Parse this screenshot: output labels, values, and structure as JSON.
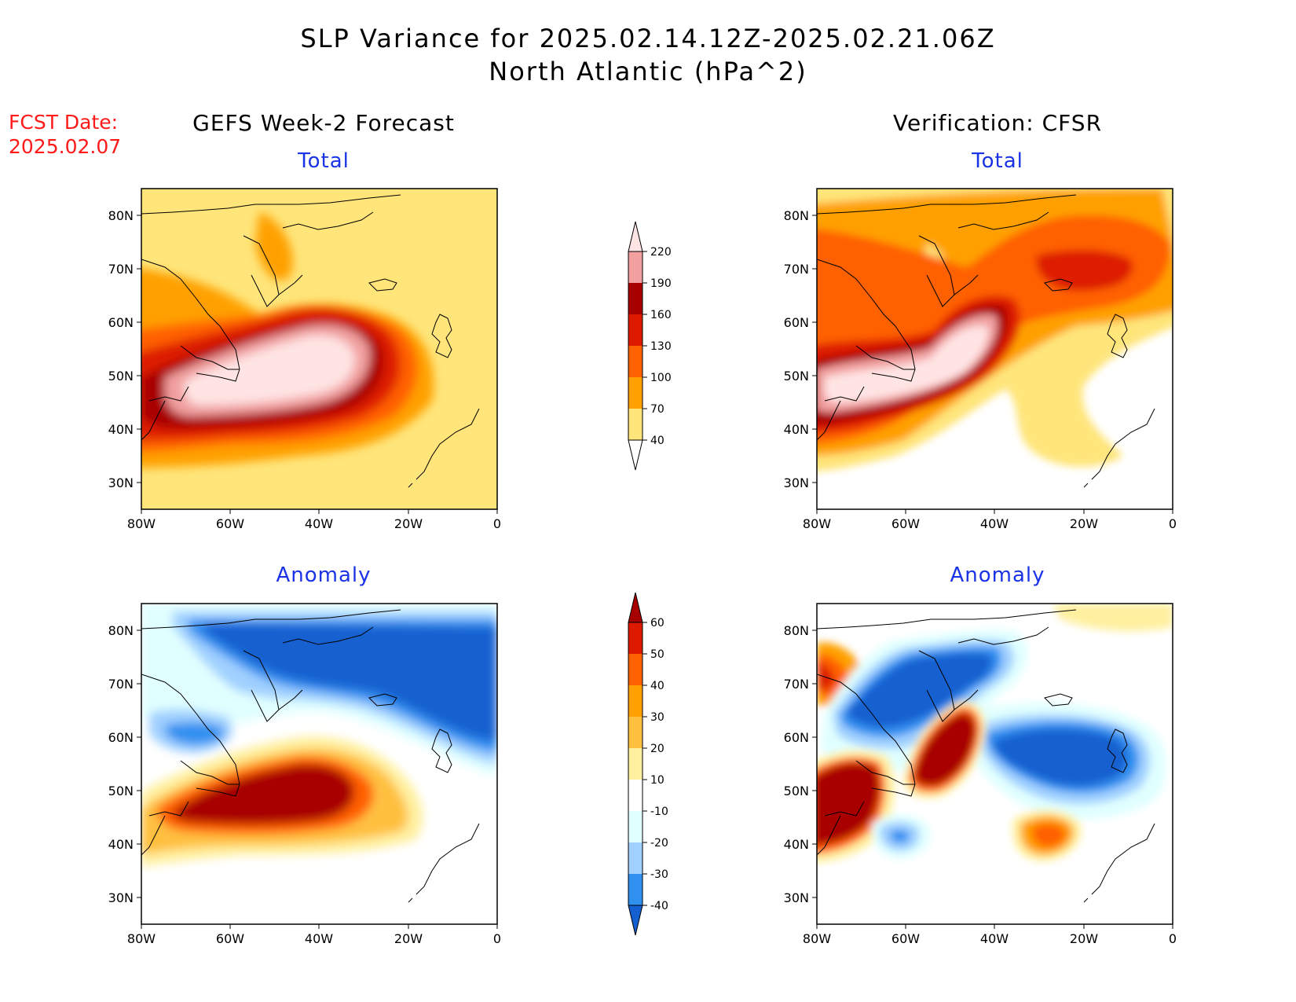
{
  "header": {
    "title_line1": "SLP Variance for 2025.02.14.12Z-2025.02.21.06Z",
    "title_line2": "North Atlantic (hPa^2)"
  },
  "fcst": {
    "label": "FCST Date:",
    "date": "2025.02.07"
  },
  "columns": {
    "left": "GEFS Week-2 Forecast",
    "right": "Verification: CFSR"
  },
  "panels": {
    "total": "Total",
    "anomaly": "Anomaly"
  },
  "axes": {
    "lat_labels": [
      "80N",
      "70N",
      "60N",
      "50N",
      "40N",
      "30N"
    ],
    "lon_labels": [
      "80W",
      "60W",
      "40W",
      "20W",
      "0"
    ]
  },
  "colorbars": {
    "total": {
      "levels": [
        "220",
        "190",
        "160",
        "130",
        "100",
        "70",
        "40"
      ],
      "colors": [
        "#ffe4e4",
        "#f2a0a0",
        "#a80000",
        "#dd1a00",
        "#ff6000",
        "#ffa000",
        "#ffe57a"
      ]
    },
    "anomaly": {
      "levels": [
        "60",
        "50",
        "40",
        "30",
        "20",
        "10",
        "-10",
        "-20",
        "-30",
        "-40"
      ],
      "colors": [
        "#a80000",
        "#dd1a00",
        "#ff6000",
        "#ffa000",
        "#ffc040",
        "#fff0a0",
        "#ffffff",
        "#e0ffff",
        "#a0d0ff",
        "#3090f0",
        "#1560d0"
      ]
    }
  },
  "field_colors": {
    "pale_yellow": "#ffe57a",
    "orange": "#ffa000",
    "dark_orange": "#ff6000",
    "red": "#dd1a00",
    "dark_red": "#a80000",
    "pink": "#f2a0a0",
    "light_pink": "#ffe4e4",
    "light_cyan": "#e0ffff",
    "light_blue": "#a0d0ff",
    "mid_blue": "#3090f0",
    "deep_blue": "#1560d0",
    "light_yellow": "#fff0a0",
    "yellow_orange": "#ffc040"
  }
}
